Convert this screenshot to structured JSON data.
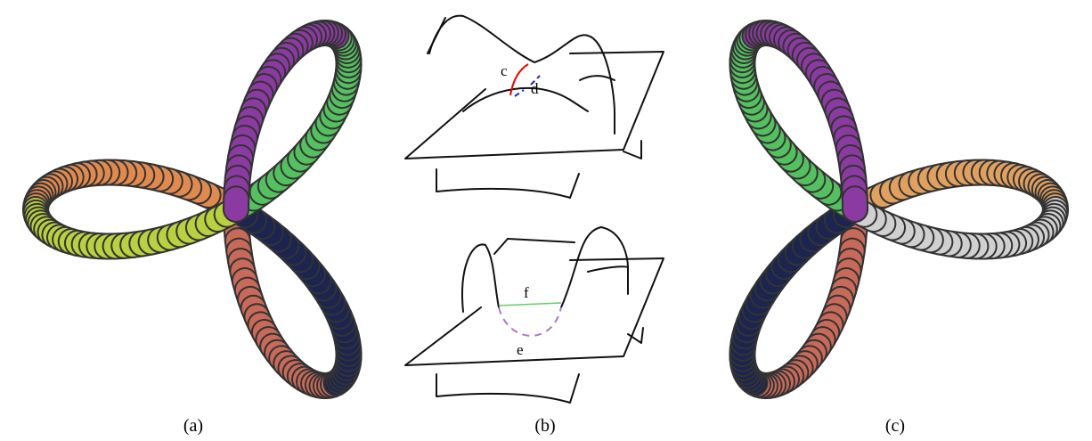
{
  "panels": [
    {
      "label": "(a)"
    },
    {
      "label": "(b)"
    },
    {
      "label": "(c)"
    }
  ],
  "sketch_top": {
    "labels": [
      "c",
      "d"
    ]
  },
  "sketch_bottom": {
    "labels": [
      "f",
      "e"
    ]
  }
}
